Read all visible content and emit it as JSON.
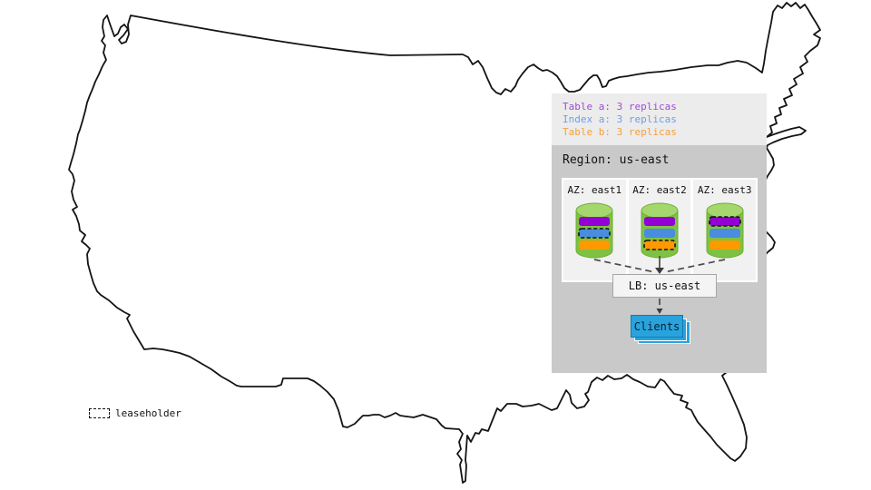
{
  "legend": {
    "entries": [
      {
        "label": "Table a: 3 replicas",
        "color": "#a14bd6"
      },
      {
        "label": "Index a: 3 replicas",
        "color": "#6e9eea"
      },
      {
        "label": "Table b: 3 replicas",
        "color": "#f5a13c"
      }
    ]
  },
  "region": {
    "title": "Region: us-east",
    "zones": [
      {
        "label": "AZ: east1",
        "replicas": [
          {
            "name": "table-a",
            "color": "#9400d3",
            "leaseholder": false
          },
          {
            "name": "index-a",
            "color": "#4a8ce0",
            "leaseholder": true
          },
          {
            "name": "table-b",
            "color": "#fe9900",
            "leaseholder": false
          }
        ]
      },
      {
        "label": "AZ: east2",
        "replicas": [
          {
            "name": "table-a",
            "color": "#9400d3",
            "leaseholder": false
          },
          {
            "name": "index-a",
            "color": "#4a8ce0",
            "leaseholder": false
          },
          {
            "name": "table-b",
            "color": "#fe9900",
            "leaseholder": true
          }
        ]
      },
      {
        "label": "AZ: east3",
        "replicas": [
          {
            "name": "table-a",
            "color": "#9400d3",
            "leaseholder": true
          },
          {
            "name": "index-a",
            "color": "#4a8ce0",
            "leaseholder": false
          },
          {
            "name": "table-b",
            "color": "#fe9900",
            "leaseholder": false
          }
        ]
      }
    ],
    "lb_label": "LB: us-east",
    "clients_label": "Clients"
  },
  "map_key": {
    "leaseholder_label": "leaseholder"
  },
  "colors": {
    "cylinder_body": "#7ec242",
    "cylinder_top": "#a5d76e",
    "cylinder_stroke": "#6fae33",
    "leaseholder_stroke": "#111111",
    "legend_bg": "#ececec",
    "region_bg": "#c9c9c9",
    "clients_fill": "#29a3dd"
  }
}
